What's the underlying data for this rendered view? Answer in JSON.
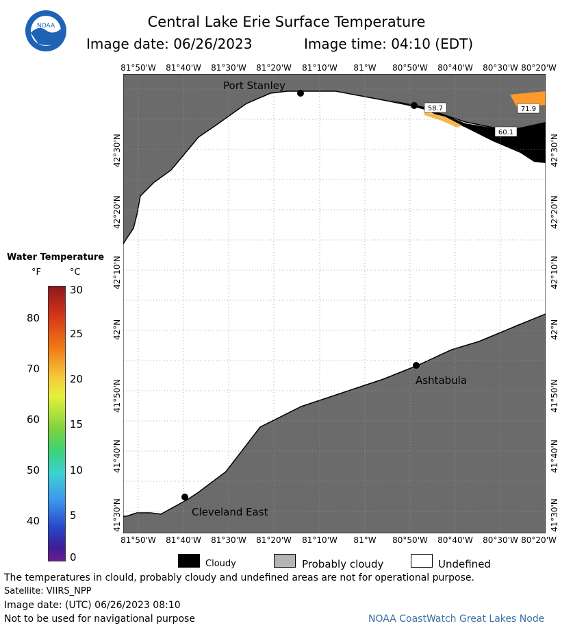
{
  "header": {
    "title": "Central Lake Erie Surface Temperature",
    "image_date": "Image date: 06/26/2023",
    "image_time": "Image time: 04:10 (EDT)",
    "logo_text": "NOAA"
  },
  "map": {
    "lon_ticks": [
      "81°50'W",
      "81°40'W",
      "81°30'W",
      "81°20'W",
      "81°10'W",
      "81°W",
      "80°50'W",
      "80°40'W",
      "80°30'W",
      "80°20'W"
    ],
    "lat_ticks": [
      "42°30'N",
      "42°20'N",
      "42°10'N",
      "42°N",
      "41°50'N",
      "41°40'N",
      "41°30'N"
    ],
    "cities": {
      "port_stanley": "Port Stanley",
      "ashtabula": "Ashtabula",
      "cleveland_east": "Cleveland East"
    },
    "buoy_labels": {
      "east_buoy": "58.7",
      "southeast_buoy": "60.1",
      "northeast_buoy": "71.9"
    },
    "colors": {
      "land": "#6b6b6b",
      "undefined_water": "#ffffff",
      "cloud": "#000000",
      "grid": "#999999"
    }
  },
  "legend": {
    "title": "Water Temperature",
    "unit_f": "°F",
    "unit_c": "°C",
    "f_ticks": [
      "80",
      "70",
      "60",
      "50",
      "40"
    ],
    "c_ticks": [
      "30",
      "25",
      "20",
      "15",
      "10",
      "5",
      "0"
    ],
    "categories": [
      {
        "label": "Cloudy",
        "color": "#000000"
      },
      {
        "label": "Probably cloudy",
        "color": "#b4b4b4"
      },
      {
        "label": "Undefined",
        "color": "#ffffff"
      }
    ]
  },
  "footer": {
    "disclaimer": "The temperatures in clould, probably cloudy and undefined areas are not for operational purpose.",
    "satellite": "Satellite: VIIRS_NPP",
    "utc_date": "Image date: (UTC) 06/26/2023  08:10",
    "nav_warning": "Not to be used for navigational purpose",
    "credit": "NOAA CoastWatch Great Lakes Node"
  }
}
